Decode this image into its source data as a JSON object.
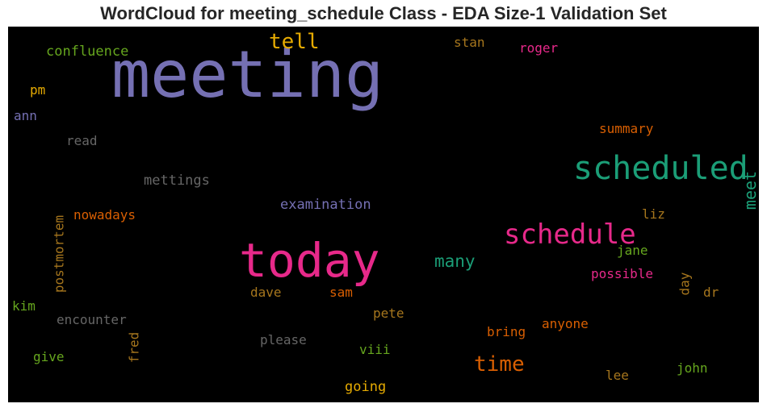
{
  "chart_data": {
    "type": "wordcloud",
    "title": "WordCloud for meeting_schedule Class - EDA Size-1 Validation Set",
    "background": "#000000",
    "words": [
      {
        "text": "meeting",
        "color": "#7570b3",
        "weight": 80,
        "rotate": 0
      },
      {
        "text": "today",
        "color": "#e7298a",
        "weight": 58,
        "rotate": 0
      },
      {
        "text": "scheduled",
        "color": "#1b9e77",
        "weight": 40,
        "rotate": 0
      },
      {
        "text": "schedule",
        "color": "#e7298a",
        "weight": 34,
        "rotate": 0
      },
      {
        "text": "time",
        "color": "#d95f02",
        "weight": 26,
        "rotate": 0
      },
      {
        "text": "tell",
        "color": "#e6ab02",
        "weight": 26,
        "rotate": 0
      },
      {
        "text": "many",
        "color": "#1b9e77",
        "weight": 21,
        "rotate": 0
      },
      {
        "text": "meet",
        "color": "#1b9e77",
        "weight": 20,
        "rotate": -90
      },
      {
        "text": "examination",
        "color": "#7570b3",
        "weight": 17,
        "rotate": 0
      },
      {
        "text": "confluence",
        "color": "#66a61e",
        "weight": 17,
        "rotate": 0
      },
      {
        "text": "mettings",
        "color": "#666666",
        "weight": 17,
        "rotate": 0
      },
      {
        "text": "nowadays",
        "color": "#d95f02",
        "weight": 16,
        "rotate": 0
      },
      {
        "text": "summary",
        "color": "#d95f02",
        "weight": 16,
        "rotate": 0
      },
      {
        "text": "going",
        "color": "#e6ab02",
        "weight": 17,
        "rotate": 0
      },
      {
        "text": "postmortem",
        "color": "#a6761d",
        "weight": 16,
        "rotate": -90
      },
      {
        "text": "possible",
        "color": "#e7298a",
        "weight": 16,
        "rotate": 0
      },
      {
        "text": "encounter",
        "color": "#666666",
        "weight": 16,
        "rotate": 0
      },
      {
        "text": "please",
        "color": "#666666",
        "weight": 16,
        "rotate": 0
      },
      {
        "text": "anyone",
        "color": "#d95f02",
        "weight": 16,
        "rotate": 0
      },
      {
        "text": "bring",
        "color": "#d95f02",
        "weight": 16,
        "rotate": 0
      },
      {
        "text": "roger",
        "color": "#e7298a",
        "weight": 16,
        "rotate": 0
      },
      {
        "text": "stan",
        "color": "#a6761d",
        "weight": 16,
        "rotate": 0
      },
      {
        "text": "read",
        "color": "#666666",
        "weight": 16,
        "rotate": 0
      },
      {
        "text": "pm",
        "color": "#e6ab02",
        "weight": 16,
        "rotate": 0
      },
      {
        "text": "ann",
        "color": "#7570b3",
        "weight": 16,
        "rotate": 0
      },
      {
        "text": "liz",
        "color": "#a6761d",
        "weight": 16,
        "rotate": 0
      },
      {
        "text": "jane",
        "color": "#66a61e",
        "weight": 16,
        "rotate": 0
      },
      {
        "text": "day",
        "color": "#a6761d",
        "weight": 16,
        "rotate": -90
      },
      {
        "text": "dr",
        "color": "#a6761d",
        "weight": 16,
        "rotate": 0
      },
      {
        "text": "dave",
        "color": "#a6761d",
        "weight": 16,
        "rotate": 0
      },
      {
        "text": "sam",
        "color": "#d95f02",
        "weight": 16,
        "rotate": 0
      },
      {
        "text": "pete",
        "color": "#a6761d",
        "weight": 16,
        "rotate": 0
      },
      {
        "text": "kim",
        "color": "#66a61e",
        "weight": 16,
        "rotate": 0
      },
      {
        "text": "give",
        "color": "#66a61e",
        "weight": 16,
        "rotate": 0
      },
      {
        "text": "fred",
        "color": "#a6761d",
        "weight": 16,
        "rotate": -90
      },
      {
        "text": "viii",
        "color": "#66a61e",
        "weight": 16,
        "rotate": 0
      },
      {
        "text": "john",
        "color": "#66a61e",
        "weight": 16,
        "rotate": 0
      },
      {
        "text": "lee",
        "color": "#a6761d",
        "weight": 16,
        "rotate": 0
      }
    ]
  }
}
